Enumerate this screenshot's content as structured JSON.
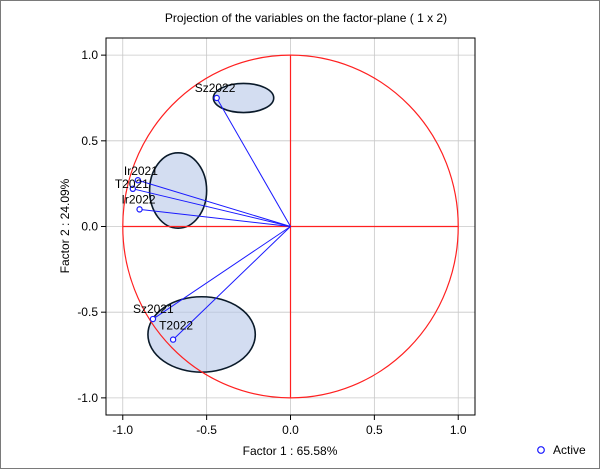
{
  "chart_data": {
    "type": "scatter",
    "title": "Projection of the variables on the factor-plane ( 1 x  2)",
    "xlabel": "Factor 1 : 65.58%",
    "ylabel": "Factor 2 : 24.09%",
    "xlim": [
      -1.1,
      1.1
    ],
    "ylim": [
      -1.1,
      1.1
    ],
    "x_ticks": [
      "-1.0",
      "-0.5",
      "0.0",
      "0.5",
      "1.0"
    ],
    "y_ticks": [
      "1.0",
      "0.5",
      "0.0",
      "-0.5",
      "-1.0"
    ],
    "x_tick_values": [
      -1.0,
      -0.5,
      0.0,
      0.5,
      1.0
    ],
    "y_tick_values": [
      1.0,
      0.5,
      0.0,
      -0.5,
      -1.0
    ],
    "grid": true,
    "legend_position": "bottom-right",
    "unit_circle_radius": 1.0,
    "series": [
      {
        "name": "Active",
        "points": [
          {
            "label": "Sz2022",
            "x": -0.44,
            "y": 0.75
          },
          {
            "label": "Ir2021",
            "x": -0.91,
            "y": 0.27
          },
          {
            "label": "T2021",
            "x": -0.94,
            "y": 0.22
          },
          {
            "label": "Ir2022",
            "x": -0.9,
            "y": 0.1
          },
          {
            "label": "Sz2021",
            "x": -0.82,
            "y": -0.54
          },
          {
            "label": "T2022",
            "x": -0.7,
            "y": -0.66
          }
        ]
      }
    ],
    "highlight_ellipses": [
      {
        "cx": -0.28,
        "cy": 0.75,
        "rx": 0.18,
        "ry": 0.085
      },
      {
        "cx": -0.67,
        "cy": 0.21,
        "rx": 0.17,
        "ry": 0.22
      },
      {
        "cx": -0.53,
        "cy": -0.63,
        "rx": 0.32,
        "ry": 0.22
      }
    ],
    "colors": {
      "circle": "#ff2020",
      "axis_lines": "#ff2020",
      "vectors": "#1a1aff",
      "points": "#1a1aff",
      "ellipse_fill": "#b6c6e8",
      "ellipse_stroke": "#0a1a2a",
      "grid": "#c8c8c8"
    }
  }
}
